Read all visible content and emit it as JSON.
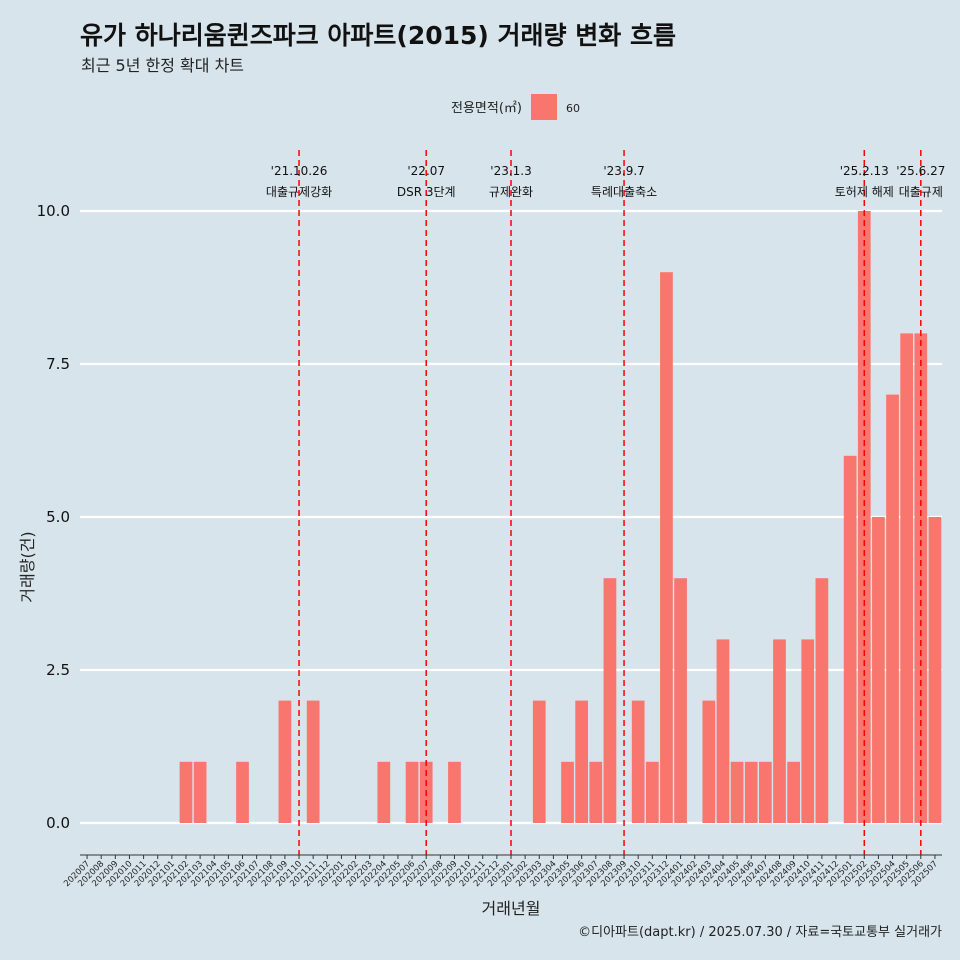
{
  "chart_data": {
    "type": "bar",
    "title": "유가 하나리움퀸즈파크 아파트(2015) 거래량 변화 흐름",
    "subtitle": "최근 5년 한정 확대 차트",
    "xlabel": "거래년월",
    "ylabel": "거래량(건)",
    "caption": "©디아파트(dapt.kr) / 2025.07.30 / 자료=국토교통부 실거래가",
    "legend": {
      "title": "전용면적(㎡)",
      "position": "top",
      "items": [
        {
          "label": "60",
          "color": "#f8766d"
        }
      ]
    },
    "ylim": [
      0,
      10
    ],
    "yticks": [
      0,
      2.5,
      5,
      7.5,
      10
    ],
    "ytick_labels": [
      "0.0",
      "2.5",
      "5.0",
      "7.5",
      "10.0"
    ],
    "grid": "horizontal",
    "bar_color": "#f8766d",
    "categories": [
      "202007",
      "202008",
      "202009",
      "202010",
      "202011",
      "202012",
      "202101",
      "202102",
      "202103",
      "202104",
      "202105",
      "202106",
      "202107",
      "202108",
      "202109",
      "202110",
      "202111",
      "202112",
      "202201",
      "202202",
      "202203",
      "202204",
      "202205",
      "202206",
      "202207",
      "202208",
      "202209",
      "202210",
      "202211",
      "202212",
      "202301",
      "202302",
      "202303",
      "202304",
      "202305",
      "202306",
      "202307",
      "202308",
      "202309",
      "202310",
      "202311",
      "202312",
      "202401",
      "202402",
      "202403",
      "202404",
      "202405",
      "202406",
      "202407",
      "202408",
      "202409",
      "202410",
      "202411",
      "202412",
      "202501",
      "202502",
      "202503",
      "202504",
      "202505",
      "202506",
      "202507"
    ],
    "values": [
      0,
      0,
      0,
      0,
      0,
      0,
      0,
      1,
      1,
      0,
      0,
      1,
      0,
      0,
      2,
      0,
      2,
      0,
      0,
      0,
      0,
      1,
      0,
      1,
      1,
      0,
      1,
      0,
      0,
      0,
      0,
      0,
      2,
      0,
      1,
      2,
      1,
      4,
      0,
      2,
      1,
      9,
      4,
      0,
      2,
      3,
      1,
      1,
      1,
      3,
      1,
      3,
      4,
      0,
      6,
      10,
      5,
      7,
      8,
      8,
      5
    ],
    "annotations": [
      {
        "x": "202110",
        "date": "'21.10.26",
        "label": "대출규제강화"
      },
      {
        "x": "202207",
        "date": "'22.07",
        "label": "DSR 3단계"
      },
      {
        "x": "202301",
        "date": "'23.1.3",
        "label": "규제완화"
      },
      {
        "x": "202309",
        "date": "'23.9.7",
        "label": "특례대출축소"
      },
      {
        "x": "202502",
        "date": "'25.2.13",
        "label": "토허제 해제"
      },
      {
        "x": "202506",
        "date": "'25.6.27",
        "label": "대출규제"
      }
    ],
    "reference_line_color": "#ff0000"
  }
}
